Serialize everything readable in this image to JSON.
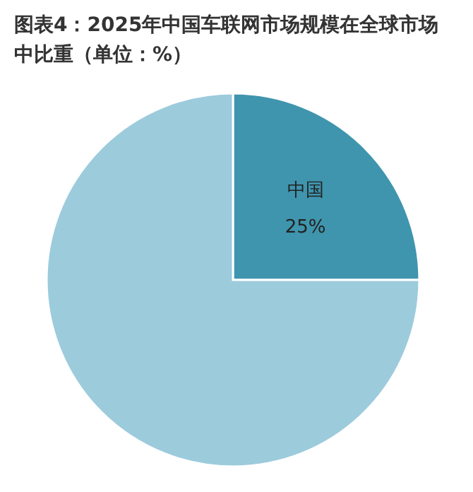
{
  "chart_data": {
    "type": "pie",
    "title": "图表4：2025年中国车联网市场规模在全球市场中比重（单位：%）",
    "categories": [
      "中国",
      null
    ],
    "values": [
      25,
      75
    ],
    "colors": [
      "#3f95ad",
      "#9ccbdc"
    ],
    "value_labels": [
      "25%",
      null
    ]
  }
}
